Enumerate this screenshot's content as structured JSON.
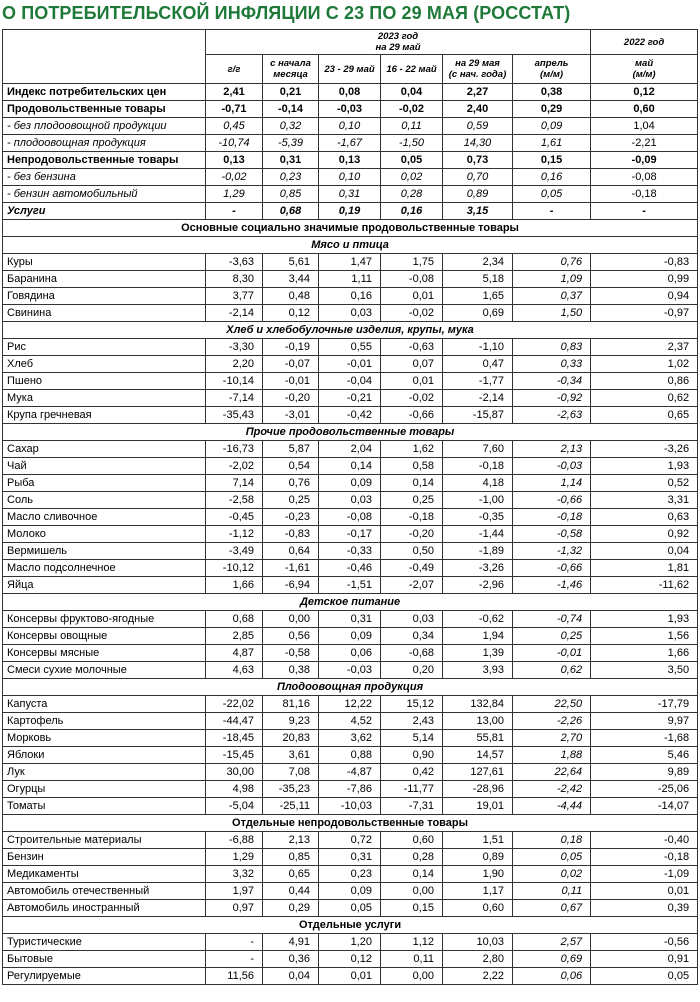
{
  "header": {
    "title": "О ПОТРЕБИТЕЛЬСКОЙ ИНФЛЯЦИИ С 23 ПО 29 МАЯ (РОССТАТ)"
  },
  "table": {
    "group_2023": "2023 год\nна 29 май",
    "group_2022": "2022 год",
    "columns": [
      "г/г",
      "с начала\nмесяца",
      "23 - 29 май",
      "16 - 22 май",
      "на 29 мая\n(с нач. года)",
      "апрель\n(м/м)",
      "май\n(м/м)"
    ],
    "rows": [
      {
        "style": "bold",
        "cells": [
          "Индекс потребительских цен",
          "2,41",
          "0,21",
          "0,08",
          "0,04",
          "2,27",
          "0,38",
          "0,12"
        ]
      },
      {
        "style": "bold",
        "cells": [
          "Продовольственные товары",
          "-0,71",
          "-0,14",
          "-0,03",
          "-0,02",
          "2,40",
          "0,29",
          "0,60"
        ]
      },
      {
        "style": "italic",
        "cells": [
          "- без плодоовощной продукции",
          "0,45",
          "0,32",
          "0,10",
          "0,11",
          "0,59",
          "0,09",
          "1,04"
        ]
      },
      {
        "style": "italic",
        "cells": [
          "- плодоовощная продукция",
          "-10,74",
          "-5,39",
          "-1,67",
          "-1,50",
          "14,30",
          "1,61",
          "-2,21"
        ]
      },
      {
        "style": "bold",
        "cells": [
          "Непродовольственные товары",
          "0,13",
          "0,31",
          "0,13",
          "0,05",
          "0,73",
          "0,15",
          "-0,09"
        ]
      },
      {
        "style": "italic",
        "cells": [
          "- без бензина",
          "-0,02",
          "0,23",
          "0,10",
          "0,02",
          "0,70",
          "0,16",
          "-0,08"
        ]
      },
      {
        "style": "italic",
        "cells": [
          "- бензин автомобильный",
          "1,29",
          "0,85",
          "0,31",
          "0,28",
          "0,89",
          "0,05",
          "-0,18"
        ]
      },
      {
        "style": "bold-italic",
        "cells": [
          "Услуги",
          "-",
          "0,68",
          "0,19",
          "0,16",
          "3,15",
          "-",
          "-"
        ]
      },
      {
        "style": "section",
        "heading": "Основные социально значимые продовольственные товары"
      },
      {
        "style": "subsection",
        "heading": "Мясо и птица"
      },
      {
        "cells": [
          "Куры",
          "-3,63",
          "5,61",
          "1,47",
          "1,75",
          "2,34",
          "0,76",
          "-0,83"
        ]
      },
      {
        "cells": [
          "Баранина",
          "8,30",
          "3,44",
          "1,11",
          "-0,08",
          "5,18",
          "1,09",
          "0,99"
        ]
      },
      {
        "cells": [
          "Говядина",
          "3,77",
          "0,48",
          "0,16",
          "0,01",
          "1,65",
          "0,37",
          "0,94"
        ]
      },
      {
        "cells": [
          "Свинина",
          "-2,14",
          "0,12",
          "0,03",
          "-0,02",
          "0,69",
          "1,50",
          "-0,97"
        ]
      },
      {
        "style": "subsection",
        "heading": "Хлеб и хлебобулочные изделия, крупы, мука"
      },
      {
        "cells": [
          "Рис",
          "-3,30",
          "-0,19",
          "0,55",
          "-0,63",
          "-1,10",
          "0,83",
          "2,37"
        ]
      },
      {
        "cells": [
          "Хлеб",
          "2,20",
          "-0,07",
          "-0,01",
          "0,07",
          "0,47",
          "0,33",
          "1,02"
        ]
      },
      {
        "cells": [
          "Пшено",
          "-10,14",
          "-0,01",
          "-0,04",
          "0,01",
          "-1,77",
          "-0,34",
          "0,86"
        ]
      },
      {
        "cells": [
          "Мука",
          "-7,14",
          "-0,20",
          "-0,21",
          "-0,02",
          "-2,14",
          "-0,92",
          "0,62"
        ]
      },
      {
        "cells": [
          "Крупа гречневая",
          "-35,43",
          "-3,01",
          "-0,42",
          "-0,66",
          "-15,87",
          "-2,63",
          "0,65"
        ]
      },
      {
        "style": "subsection",
        "heading": "Прочие продовольственные товары"
      },
      {
        "cells": [
          "Сахар",
          "-16,73",
          "5,87",
          "2,04",
          "1,62",
          "7,60",
          "2,13",
          "-3,26"
        ]
      },
      {
        "cells": [
          "Чай",
          "-2,02",
          "0,54",
          "0,14",
          "0,58",
          "-0,18",
          "-0,03",
          "1,93"
        ]
      },
      {
        "cells": [
          "Рыба",
          "7,14",
          "0,76",
          "0,09",
          "0,14",
          "4,18",
          "1,14",
          "0,52"
        ]
      },
      {
        "cells": [
          "Соль",
          "-2,58",
          "0,25",
          "0,03",
          "0,25",
          "-1,00",
          "-0,66",
          "3,31"
        ]
      },
      {
        "cells": [
          "Масло сливочное",
          "-0,45",
          "-0,23",
          "-0,08",
          "-0,18",
          "-0,35",
          "-0,18",
          "0,63"
        ]
      },
      {
        "cells": [
          "Молоко",
          "-1,12",
          "-0,83",
          "-0,17",
          "-0,20",
          "-1,44",
          "-0,58",
          "0,92"
        ]
      },
      {
        "cells": [
          "Вермишель",
          "-3,49",
          "0,64",
          "-0,33",
          "0,50",
          "-1,89",
          "-1,32",
          "0,04"
        ]
      },
      {
        "cells": [
          "Масло подсолнечное",
          "-10,12",
          "-1,61",
          "-0,46",
          "-0,49",
          "-3,26",
          "-0,66",
          "1,81"
        ]
      },
      {
        "cells": [
          "Яйца",
          "1,66",
          "-6,94",
          "-1,51",
          "-2,07",
          "-2,96",
          "-1,46",
          "-11,62"
        ]
      },
      {
        "style": "subsection",
        "heading": "Детское питание"
      },
      {
        "cells": [
          "Консервы фруктово-ягодные",
          "0,68",
          "0,00",
          "0,31",
          "0,03",
          "-0,62",
          "-0,74",
          "1,93"
        ]
      },
      {
        "cells": [
          "Консервы овощные",
          "2,85",
          "0,56",
          "0,09",
          "0,34",
          "1,94",
          "0,25",
          "1,56"
        ]
      },
      {
        "cells": [
          "Консервы мясные",
          "4,87",
          "-0,58",
          "0,06",
          "-0,68",
          "1,39",
          "-0,01",
          "1,66"
        ]
      },
      {
        "cells": [
          "Смеси сухие молочные",
          "4,63",
          "0,38",
          "-0,03",
          "0,20",
          "3,93",
          "0,62",
          "3,50"
        ]
      },
      {
        "style": "subsection",
        "heading": "Плодоовощная продукция"
      },
      {
        "cells": [
          "Капуста",
          "-22,02",
          "81,16",
          "12,22",
          "15,12",
          "132,84",
          "22,50",
          "-17,79"
        ]
      },
      {
        "cells": [
          "Картофель",
          "-44,47",
          "9,23",
          "4,52",
          "2,43",
          "13,00",
          "-2,26",
          "9,97"
        ]
      },
      {
        "cells": [
          "Морковь",
          "-18,45",
          "20,83",
          "3,62",
          "5,14",
          "55,81",
          "2,70",
          "-1,68"
        ]
      },
      {
        "cells": [
          "Яблоки",
          "-15,45",
          "3,61",
          "0,88",
          "0,90",
          "14,57",
          "1,88",
          "5,46"
        ]
      },
      {
        "cells": [
          "Лук",
          "30,00",
          "7,08",
          "-4,87",
          "0,42",
          "127,61",
          "22,64",
          "9,89"
        ]
      },
      {
        "cells": [
          "Огурцы",
          "4,98",
          "-35,23",
          "-7,86",
          "-11,77",
          "-28,96",
          "-2,42",
          "-25,06"
        ]
      },
      {
        "cells": [
          "Томаты",
          "-5,04",
          "-25,11",
          "-10,03",
          "-7,31",
          "19,01",
          "-4,44",
          "-14,07"
        ]
      },
      {
        "style": "section",
        "heading": "Отдельные непродовольственные товары"
      },
      {
        "cells": [
          "Строительные материалы",
          "-6,88",
          "2,13",
          "0,72",
          "0,60",
          "1,51",
          "0,18",
          "-0,40"
        ]
      },
      {
        "cells": [
          "Бензин",
          "1,29",
          "0,85",
          "0,31",
          "0,28",
          "0,89",
          "0,05",
          "-0,18"
        ]
      },
      {
        "cells": [
          "Медикаменты",
          "3,32",
          "0,65",
          "0,23",
          "0,14",
          "1,90",
          "0,02",
          "-1,09"
        ]
      },
      {
        "cells": [
          "Автомобиль отечественный",
          "1,97",
          "0,44",
          "0,09",
          "0,00",
          "1,17",
          "0,11",
          "0,01"
        ]
      },
      {
        "cells": [
          "Автомобиль иностранный",
          "0,97",
          "0,29",
          "0,05",
          "0,15",
          "0,60",
          "0,67",
          "0,39"
        ]
      },
      {
        "style": "section",
        "heading": "Отдельные услуги"
      },
      {
        "cells": [
          "Туристические",
          "-",
          "4,91",
          "1,20",
          "1,12",
          "10,03",
          "2,57",
          "-0,56"
        ]
      },
      {
        "cells": [
          "Бытовые",
          "-",
          "0,36",
          "0,12",
          "0,11",
          "2,80",
          "0,69",
          "0,91"
        ]
      },
      {
        "cells": [
          "Регулируемые",
          "11,56",
          "0,04",
          "0,01",
          "0,00",
          "2,22",
          "0,06",
          "0,05"
        ]
      }
    ]
  }
}
